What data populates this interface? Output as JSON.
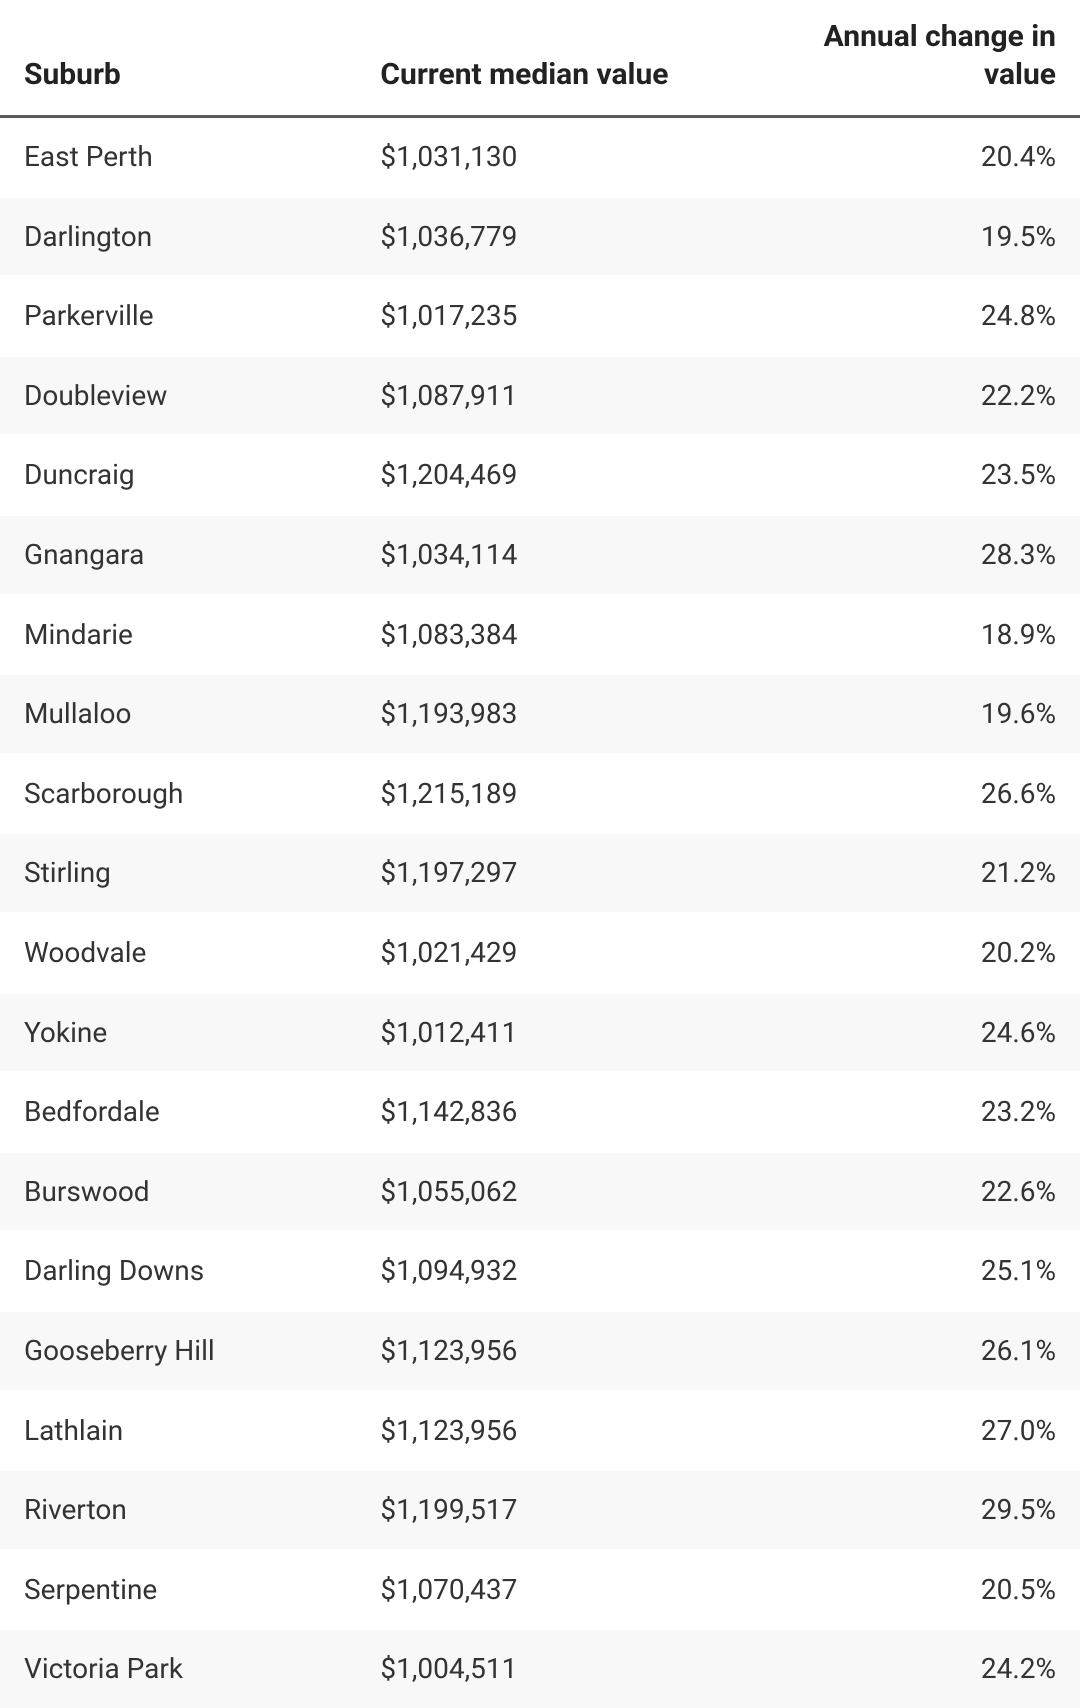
{
  "table": {
    "type": "table",
    "background_color": "#ffffff",
    "row_stripe_color": "#f8f8f8",
    "header_border_color": "#5a5a5a",
    "text_color": "#333333",
    "header_text_color": "#222222",
    "header_fontsize": 30,
    "body_fontsize": 28,
    "columns": [
      {
        "key": "suburb",
        "label": "Suburb",
        "align": "left",
        "width_pct": 33
      },
      {
        "key": "value",
        "label": "Current median value",
        "align": "left",
        "width_pct": 35
      },
      {
        "key": "change",
        "label": "Annual change in value",
        "align": "right",
        "width_pct": 32
      }
    ],
    "rows": [
      {
        "suburb": "East Perth",
        "value": "$1,031,130",
        "change": "20.4%"
      },
      {
        "suburb": "Darlington",
        "value": "$1,036,779",
        "change": "19.5%"
      },
      {
        "suburb": "Parkerville",
        "value": "$1,017,235",
        "change": "24.8%"
      },
      {
        "suburb": "Doubleview",
        "value": "$1,087,911",
        "change": "22.2%"
      },
      {
        "suburb": "Duncraig",
        "value": "$1,204,469",
        "change": "23.5%"
      },
      {
        "suburb": "Gnangara",
        "value": "$1,034,114",
        "change": "28.3%"
      },
      {
        "suburb": "Mindarie",
        "value": "$1,083,384",
        "change": "18.9%"
      },
      {
        "suburb": "Mullaloo",
        "value": "$1,193,983",
        "change": "19.6%"
      },
      {
        "suburb": "Scarborough",
        "value": "$1,215,189",
        "change": "26.6%"
      },
      {
        "suburb": "Stirling",
        "value": "$1,197,297",
        "change": "21.2%"
      },
      {
        "suburb": "Woodvale",
        "value": "$1,021,429",
        "change": "20.2%"
      },
      {
        "suburb": "Yokine",
        "value": "$1,012,411",
        "change": "24.6%"
      },
      {
        "suburb": "Bedfordale",
        "value": "$1,142,836",
        "change": "23.2%"
      },
      {
        "suburb": "Burswood",
        "value": "$1,055,062",
        "change": "22.6%"
      },
      {
        "suburb": "Darling Downs",
        "value": "$1,094,932",
        "change": "25.1%"
      },
      {
        "suburb": "Gooseberry Hill",
        "value": "$1,123,956",
        "change": "26.1%"
      },
      {
        "suburb": "Lathlain",
        "value": "$1,123,956",
        "change": "27.0%"
      },
      {
        "suburb": "Riverton",
        "value": "$1,199,517",
        "change": "29.5%"
      },
      {
        "suburb": "Serpentine",
        "value": "$1,070,437",
        "change": "20.5%"
      },
      {
        "suburb": "Victoria Park",
        "value": "$1,004,511",
        "change": "24.2%"
      }
    ]
  }
}
